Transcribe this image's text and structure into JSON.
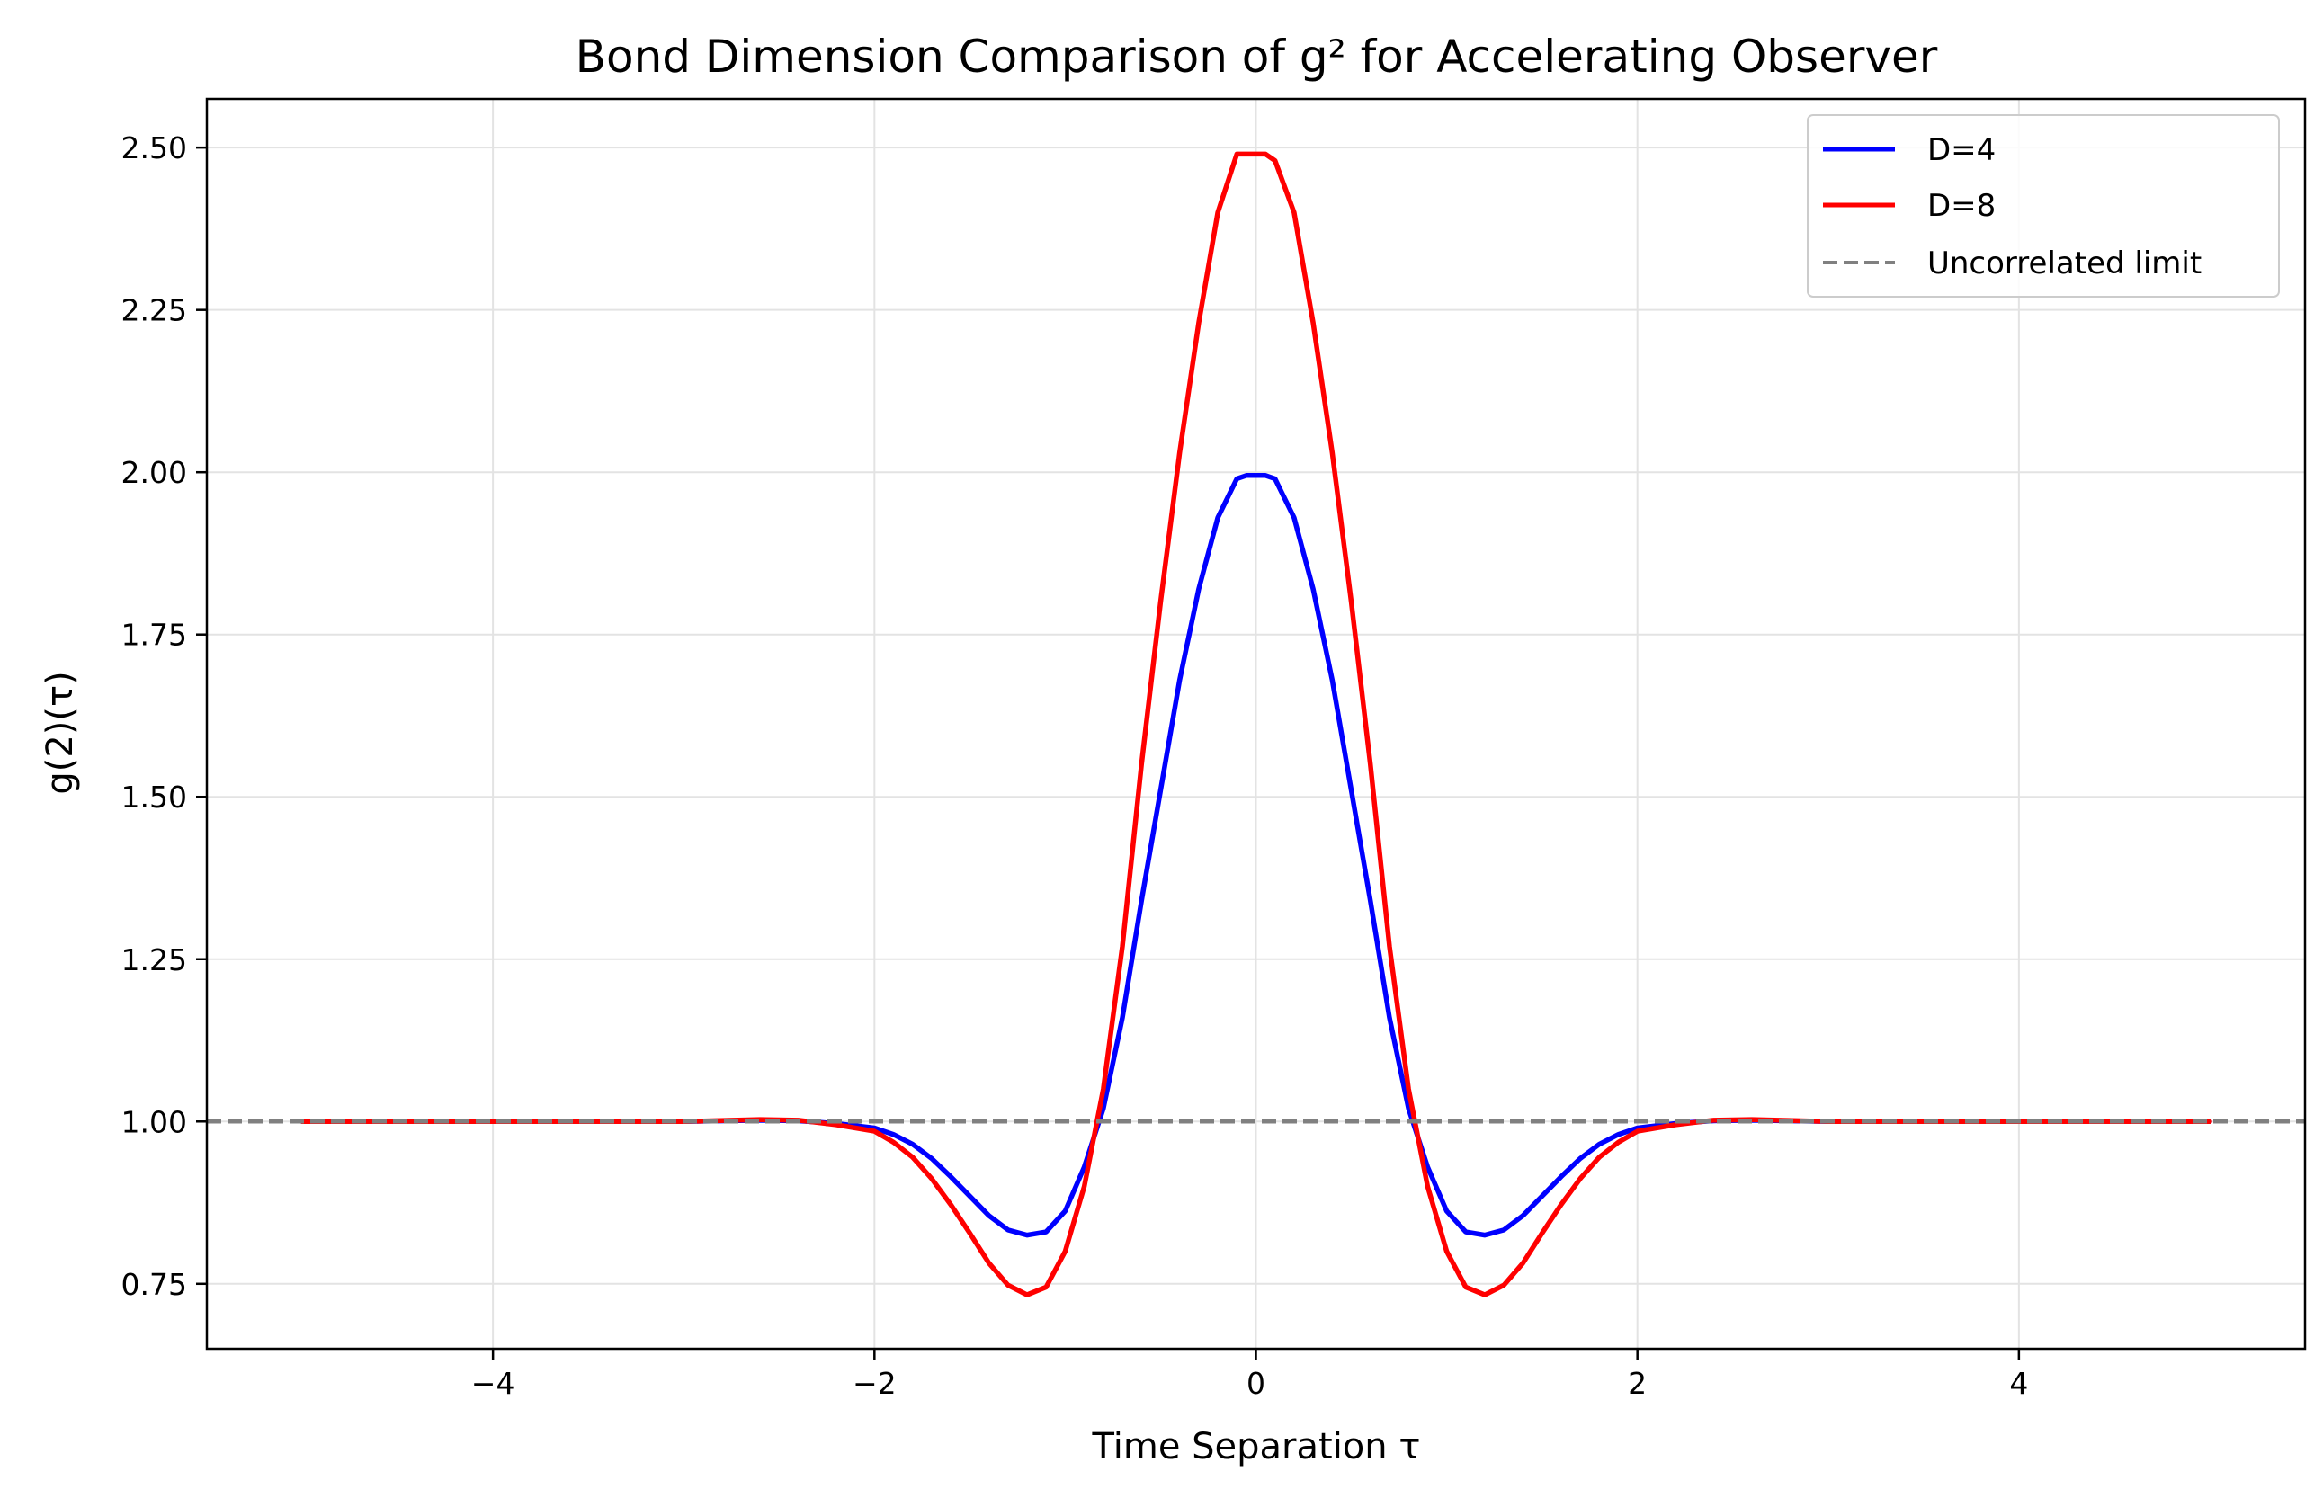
{
  "chart_data": {
    "type": "line",
    "title": "Bond Dimension Comparison of g² for Accelerating Observer",
    "xlabel": "Time Separation τ",
    "ylabel": "g(2)(τ)",
    "xlim": [
      -5.5,
      5.5
    ],
    "ylim": [
      0.65,
      2.575
    ],
    "xticks": [
      -4,
      -2,
      0,
      2,
      4
    ],
    "xtick_labels": [
      "−4",
      "−2",
      "0",
      "2",
      "4"
    ],
    "yticks": [
      0.75,
      1.0,
      1.25,
      1.5,
      1.75,
      2.0,
      2.25,
      2.5
    ],
    "ytick_labels": [
      "0.75",
      "1.00",
      "1.25",
      "1.50",
      "1.75",
      "2.00",
      "2.25",
      "2.50"
    ],
    "grid": true,
    "legend_position": "top-right",
    "x": [
      -5.0,
      -4.5,
      -4.0,
      -3.5,
      -3.0,
      -2.6,
      -2.4,
      -2.2,
      -2.0,
      -1.9,
      -1.8,
      -1.7,
      -1.6,
      -1.5,
      -1.4,
      -1.3,
      -1.2,
      -1.1,
      -1.0,
      -0.9,
      -0.8,
      -0.7,
      -0.6,
      -0.5,
      -0.4,
      -0.3,
      -0.2,
      -0.1,
      -0.05,
      0.05,
      0.1,
      0.2,
      0.3,
      0.4,
      0.5,
      0.6,
      0.7,
      0.8,
      0.9,
      1.0,
      1.1,
      1.2,
      1.3,
      1.4,
      1.5,
      1.6,
      1.7,
      1.8,
      1.9,
      2.0,
      2.2,
      2.4,
      2.6,
      3.0,
      3.5,
      4.0,
      4.5,
      5.0
    ],
    "series": [
      {
        "name": "D=4",
        "color": "#0000ff",
        "values": [
          1.0,
          1.0,
          1.0,
          1.0,
          1.0,
          1.002,
          1.001,
          0.997,
          0.99,
          0.98,
          0.965,
          0.943,
          0.915,
          0.885,
          0.855,
          0.833,
          0.825,
          0.83,
          0.862,
          0.93,
          1.02,
          1.16,
          1.34,
          1.51,
          1.68,
          1.82,
          1.93,
          1.99,
          1.995,
          1.995,
          1.99,
          1.93,
          1.82,
          1.68,
          1.51,
          1.34,
          1.16,
          1.02,
          0.93,
          0.862,
          0.83,
          0.825,
          0.833,
          0.855,
          0.885,
          0.915,
          0.943,
          0.965,
          0.98,
          0.99,
          0.997,
          1.001,
          1.002,
          1.0,
          1.0,
          1.0,
          1.0,
          1.0
        ]
      },
      {
        "name": "D=8",
        "color": "#ff0000",
        "values": [
          1.0,
          1.0,
          1.0,
          1.0,
          1.0,
          1.003,
          1.002,
          0.995,
          0.985,
          0.968,
          0.945,
          0.912,
          0.872,
          0.828,
          0.782,
          0.748,
          0.733,
          0.745,
          0.8,
          0.9,
          1.05,
          1.27,
          1.55,
          1.8,
          2.03,
          2.23,
          2.4,
          2.49,
          2.49,
          2.49,
          2.48,
          2.4,
          2.23,
          2.03,
          1.8,
          1.55,
          1.27,
          1.05,
          0.9,
          0.8,
          0.745,
          0.733,
          0.748,
          0.782,
          0.828,
          0.872,
          0.912,
          0.945,
          0.968,
          0.985,
          0.995,
          1.002,
          1.003,
          1.0,
          1.0,
          1.0,
          1.0,
          1.0
        ]
      }
    ],
    "reference_line": {
      "name": "Uncorrelated limit",
      "y": 1.0,
      "color": "#808080",
      "style": "dashed"
    }
  }
}
